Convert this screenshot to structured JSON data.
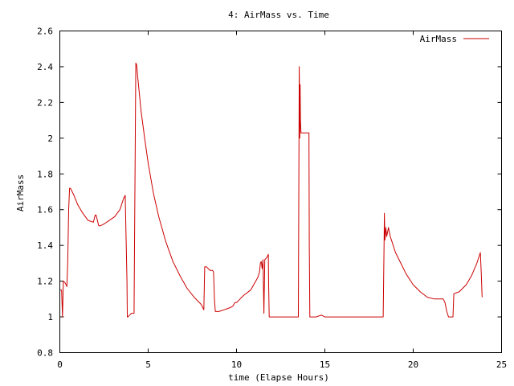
{
  "chart_data": {
    "type": "line",
    "title": "4: AirMass vs. Time",
    "xlabel": "time (Elapse Hours)",
    "ylabel": "AirMass",
    "xlim": [
      0,
      25
    ],
    "ylim": [
      0.8,
      2.6
    ],
    "x_ticks": [
      0,
      5,
      10,
      15,
      20,
      25
    ],
    "y_ticks": [
      0.8,
      1,
      1.2,
      1.4,
      1.6,
      1.8,
      2,
      2.2,
      2.4,
      2.6
    ],
    "x_tick_labels": [
      "0",
      "5",
      "10",
      "15",
      "20",
      "25"
    ],
    "y_tick_labels": [
      "0.8",
      "1",
      "1.2",
      "1.4",
      "1.6",
      "1.8",
      "2",
      "2.2",
      "2.4",
      "2.6"
    ],
    "grid": false,
    "legend_position": "top-right",
    "series": [
      {
        "name": "AirMass",
        "color": "#cc0000",
        "x": [
          0.0,
          0.1,
          0.15,
          0.2,
          0.3,
          0.4,
          0.45,
          0.5,
          0.55,
          0.6,
          0.8,
          1.0,
          1.3,
          1.6,
          1.9,
          2.0,
          2.05,
          2.1,
          2.2,
          2.3,
          2.5,
          2.8,
          3.1,
          3.4,
          3.6,
          3.7,
          3.8,
          3.82,
          3.85,
          3.95,
          4.05,
          4.2,
          4.3,
          4.35,
          4.4,
          4.6,
          4.8,
          5.0,
          5.3,
          5.6,
          6.0,
          6.4,
          6.8,
          7.2,
          7.6,
          8.0,
          8.15,
          8.2,
          8.3,
          8.4,
          8.5,
          8.65,
          8.7,
          8.75,
          8.8,
          9.0,
          9.3,
          9.6,
          9.8,
          9.9,
          10.0,
          10.2,
          10.4,
          10.8,
          11.2,
          11.3,
          11.35,
          11.4,
          11.45,
          11.5,
          11.55,
          11.6,
          11.7,
          11.8,
          11.82,
          11.85,
          12.0,
          12.5,
          13.0,
          13.5,
          13.55,
          13.58,
          13.6,
          13.62,
          13.65,
          13.7,
          13.8,
          14.0,
          14.1,
          14.12,
          14.15,
          14.3,
          14.5,
          14.8,
          15.0,
          16.0,
          17.0,
          18.0,
          18.3,
          18.35,
          18.37,
          18.4,
          18.45,
          18.5,
          18.6,
          18.7,
          18.8,
          19.0,
          19.3,
          19.6,
          20.0,
          20.4,
          20.8,
          21.2,
          21.5,
          21.6,
          21.7,
          21.8,
          21.9,
          22.0,
          22.2,
          22.25,
          22.3,
          22.6,
          23.0,
          23.3,
          23.6,
          23.8,
          23.85,
          23.9
        ],
        "y": [
          1.15,
          1.15,
          1.0,
          1.2,
          1.19,
          1.17,
          1.32,
          1.6,
          1.72,
          1.72,
          1.68,
          1.63,
          1.58,
          1.54,
          1.53,
          1.57,
          1.57,
          1.55,
          1.51,
          1.51,
          1.52,
          1.54,
          1.56,
          1.6,
          1.66,
          1.68,
          1.2,
          1.0,
          1.0,
          1.01,
          1.02,
          1.02,
          2.42,
          2.41,
          2.35,
          2.15,
          2.0,
          1.86,
          1.69,
          1.56,
          1.42,
          1.31,
          1.23,
          1.16,
          1.11,
          1.07,
          1.04,
          1.28,
          1.28,
          1.27,
          1.26,
          1.26,
          1.25,
          1.1,
          1.03,
          1.03,
          1.04,
          1.05,
          1.06,
          1.08,
          1.08,
          1.1,
          1.12,
          1.15,
          1.22,
          1.25,
          1.3,
          1.31,
          1.27,
          1.32,
          1.02,
          1.32,
          1.33,
          1.35,
          1.18,
          1.0,
          1.0,
          1.0,
          1.0,
          1.0,
          2.4,
          2.0,
          2.3,
          2.1,
          2.03,
          2.03,
          2.03,
          2.03,
          2.03,
          1.4,
          1.0,
          1.0,
          1.0,
          1.01,
          1.0,
          1.0,
          1.0,
          1.0,
          1.0,
          1.4,
          1.58,
          1.43,
          1.5,
          1.45,
          1.5,
          1.45,
          1.42,
          1.36,
          1.3,
          1.24,
          1.18,
          1.14,
          1.11,
          1.1,
          1.1,
          1.1,
          1.1,
          1.08,
          1.03,
          1.0,
          1.0,
          1.0,
          1.13,
          1.14,
          1.18,
          1.23,
          1.3,
          1.36,
          1.25,
          1.11
        ]
      }
    ]
  }
}
